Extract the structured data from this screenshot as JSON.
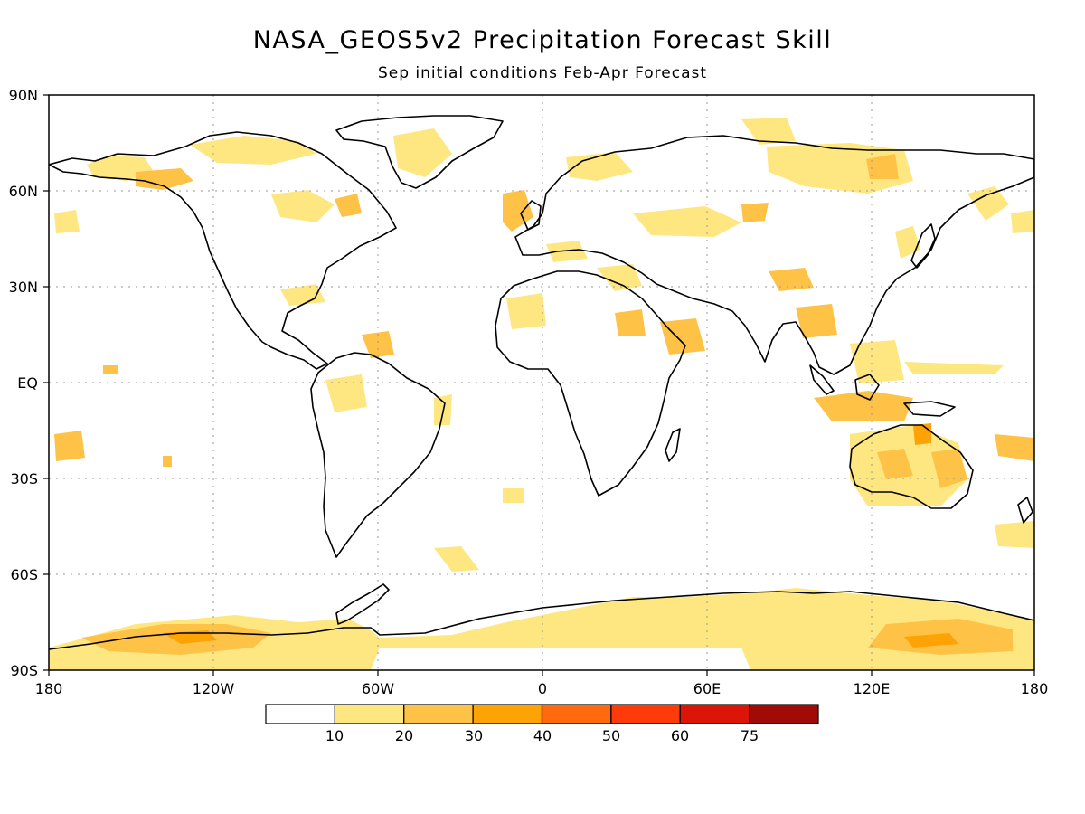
{
  "title": "NASA_GEOS5v2 Precipitation Forecast Skill",
  "subtitle": "Sep initial conditions  Feb-Apr Forecast",
  "lat_ticks": [
    "90N",
    "60N",
    "30N",
    "EQ",
    "30S",
    "60S",
    "90S"
  ],
  "lon_ticks": [
    "180",
    "120W",
    "60W",
    "0",
    "60E",
    "120E",
    "180"
  ],
  "legend": {
    "labels": [
      "10",
      "20",
      "30",
      "40",
      "50",
      "60",
      "75"
    ],
    "colors": [
      "#ffffff",
      "#fee781",
      "#fec346",
      "#fea305",
      "#fe6a0c",
      "#ff3b0a",
      "#dc1508",
      "#a00b08"
    ]
  },
  "colors": {
    "coastline": "#000000",
    "grid": "#9a9a9a",
    "frame": "#000000"
  }
}
